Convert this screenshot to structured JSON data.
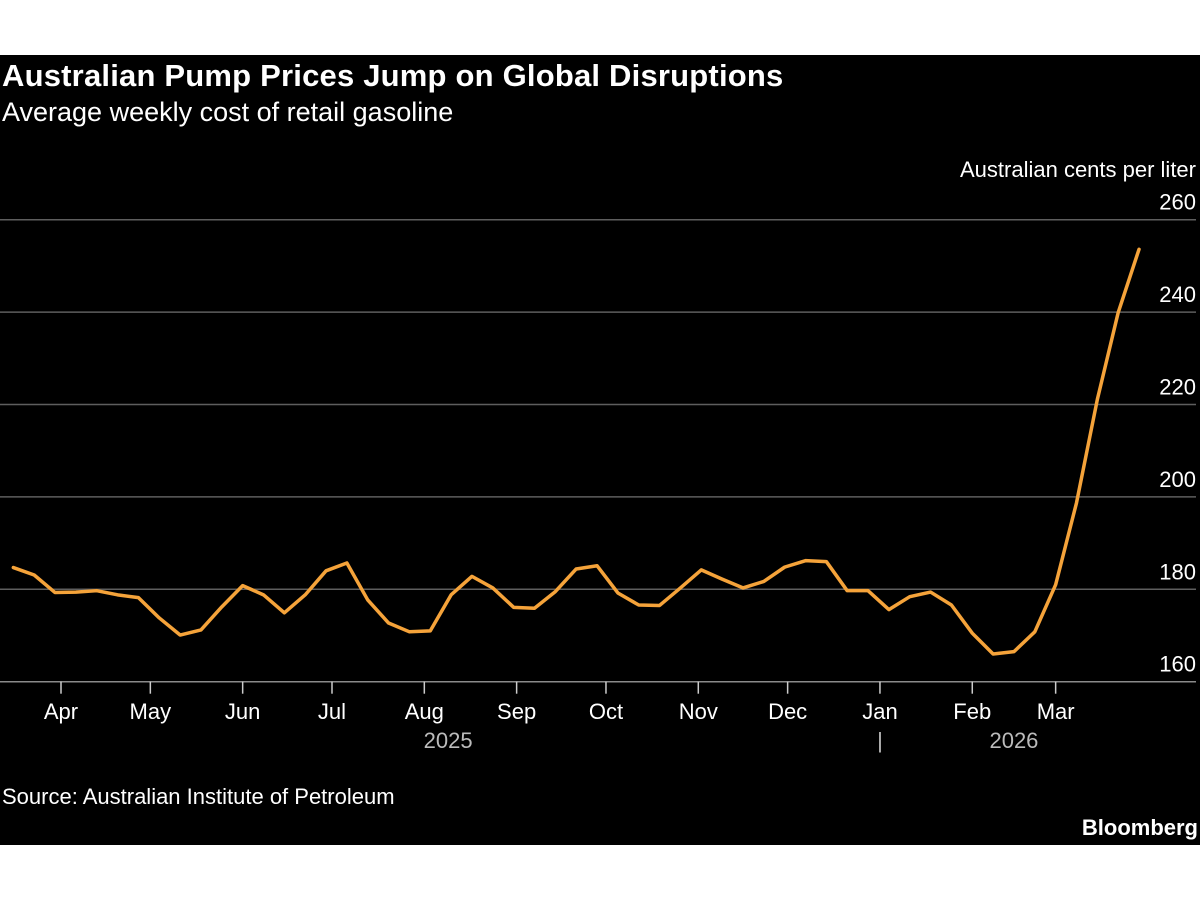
{
  "title": "Australian Pump Prices Jump on Global Disruptions",
  "subtitle": "Average weekly cost of retail gasoline",
  "source": "Source: Australian Institute of Petroleum",
  "logo": "Bloomberg",
  "chart_data": {
    "type": "line",
    "title": "Australian Pump Prices Jump on Global Disruptions",
    "subtitle": "Average weekly cost of retail gasoline",
    "ylabel": "Australian cents per liter",
    "xlabel": "",
    "ylim": [
      160,
      260
    ],
    "yticks": [
      160,
      180,
      200,
      220,
      240,
      260
    ],
    "y_axis_side": "right",
    "grid": true,
    "line_color": "#f5a33a",
    "background": "#000000",
    "x_start": "2025-03-16",
    "x_step_days": 7,
    "month_ticks": [
      {
        "label": "Apr",
        "date": "2025-04-01"
      },
      {
        "label": "May",
        "date": "2025-05-01"
      },
      {
        "label": "Jun",
        "date": "2025-06-01"
      },
      {
        "label": "Jul",
        "date": "2025-07-01"
      },
      {
        "label": "Aug",
        "date": "2025-08-01"
      },
      {
        "label": "Sep",
        "date": "2025-09-01"
      },
      {
        "label": "Oct",
        "date": "2025-10-01"
      },
      {
        "label": "Nov",
        "date": "2025-11-01"
      },
      {
        "label": "Dec",
        "date": "2025-12-01"
      },
      {
        "label": "Jan",
        "date": "2026-01-01"
      },
      {
        "label": "Feb",
        "date": "2026-02-01"
      },
      {
        "label": "Mar",
        "date": "2026-03-01"
      }
    ],
    "year_labels": [
      {
        "label": "2025",
        "date": "2025-08-09"
      },
      {
        "label": "2026",
        "date": "2026-02-15"
      }
    ],
    "year_separator": "|",
    "series": [
      {
        "values": [
          184.7,
          183.1,
          179.3,
          179.4,
          179.7,
          178.8,
          178.2,
          173.8,
          170.1,
          171.2,
          176.2,
          180.8,
          178.8,
          174.9,
          178.8,
          184.0,
          185.7,
          177.7,
          172.7,
          170.8,
          171.0,
          178.8,
          182.8,
          180.3,
          176.1,
          175.9,
          179.5,
          184.4,
          185.1,
          179.2,
          176.6,
          176.5,
          180.3,
          184.2,
          182.2,
          180.3,
          181.7,
          184.8,
          186.2,
          186.0,
          179.7,
          179.7,
          175.6,
          178.4,
          179.4,
          176.6,
          170.5,
          166.0,
          166.5,
          170.8,
          181.0,
          198.7,
          221.1,
          239.9,
          253.6
        ]
      }
    ]
  }
}
